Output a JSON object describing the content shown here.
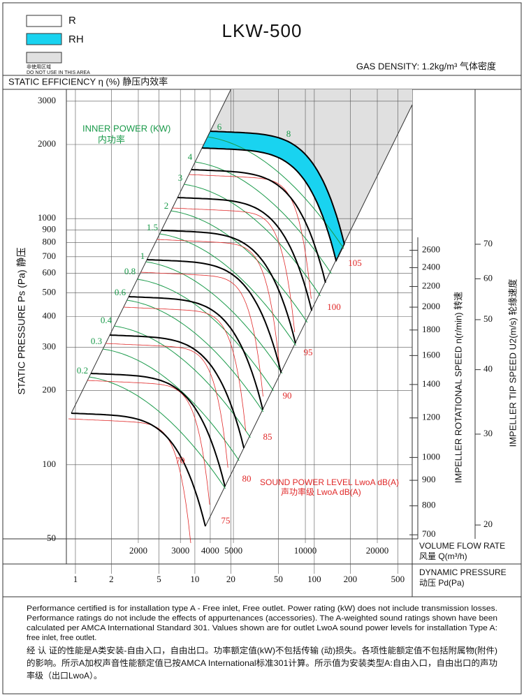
{
  "header": {
    "title": "LKW-500",
    "legend": [
      "R",
      "RH"
    ],
    "no_use": [
      "非使用区域",
      "DO NOT USE IN THIS AREA"
    ],
    "gas_density": "GAS DENSITY: 1.2kg/m³ 气体密度"
  },
  "efficiency_label": "STATIC EFFICIENCY η (%) 静压内效率",
  "chart_data": {
    "type": "fan-curve",
    "log_y": true,
    "log_x": true,
    "grid": true,
    "y_label": "STATIC PRESSURE Ps (Pa) 静压",
    "ylim": [
      50,
      3350
    ],
    "yticks": [
      3000,
      2000,
      1000,
      900,
      800,
      700,
      600,
      500,
      400,
      300,
      200,
      100,
      50
    ],
    "x_label": [
      "VOLUME FLOW RATE",
      "风量 Q(m³/h)"
    ],
    "xlim": [
      1000,
      28000
    ],
    "xticks": [
      2000,
      3000,
      4000,
      5000,
      10000,
      20000
    ],
    "pd_label": [
      "DYNAMIC PRESSURE",
      "动压 Pd(Pa)"
    ],
    "pd_lim": [
      0.84,
      660
    ],
    "pd_ticks": [
      1,
      2,
      5,
      10,
      20,
      50,
      100,
      200,
      500
    ],
    "speed_label": "IMPELLER ROTATIONAL SPEED n(r/min) 转速",
    "speed_lim": [
      687,
      2760
    ],
    "speed_ticks": [
      2600,
      2400,
      2200,
      2000,
      1800,
      1600,
      1400,
      1200,
      1000,
      900,
      800,
      700
    ],
    "tip_label": "IMPELLER TIP SPEED U2(m/s) 轮缘速度",
    "tip_lim": [
      18.8,
      72.2
    ],
    "tip_ticks": [
      70,
      60,
      50,
      40,
      30,
      20
    ],
    "power_label": [
      "INNER POWER (KW)",
      "内功率"
    ],
    "power_color": "#1a9a4a",
    "power_values": [
      6,
      8,
      4,
      3,
      2,
      1.5,
      1,
      0.8,
      0.6,
      0.4,
      0.3,
      0.2
    ],
    "sound_label": [
      "SOUND POWER LEVEL LwoA dB(A)",
      "声功率级 LwoA dB(A)"
    ],
    "sound_color": "#e02828",
    "sound_values": [
      105,
      100,
      95,
      90,
      85,
      80,
      75,
      70
    ],
    "rh_color": "#19d3f0",
    "no_use_color": "#e0e0e0"
  },
  "notes": {
    "en": [
      "Performance certified is for installation type A - Free inlet, Free outlet. Power rating (kW) does not include transmission losses.",
      "Performance ratings do not include the effects of appurtenances (accessories). The A-weighted sound ratings shown have been",
      "calculated per AMCA International Standard 301. Values shown are for outlet LwoA sound power levels for installation Type A:",
      "free inlet, free outlet."
    ],
    "zh": [
      "经 认 证的性能是A类安装-自由入口，自由出口。功率额定值(kW)不包括传输 (动)损失。各项性能额定值不包括附属物(附件)",
      "的影响。所示A加权声音性能额定值已按AMCA International标准301计算。所示值为安装类型A:自由入口，自由出口的声功",
      "率级（出口LwoA）。"
    ]
  }
}
